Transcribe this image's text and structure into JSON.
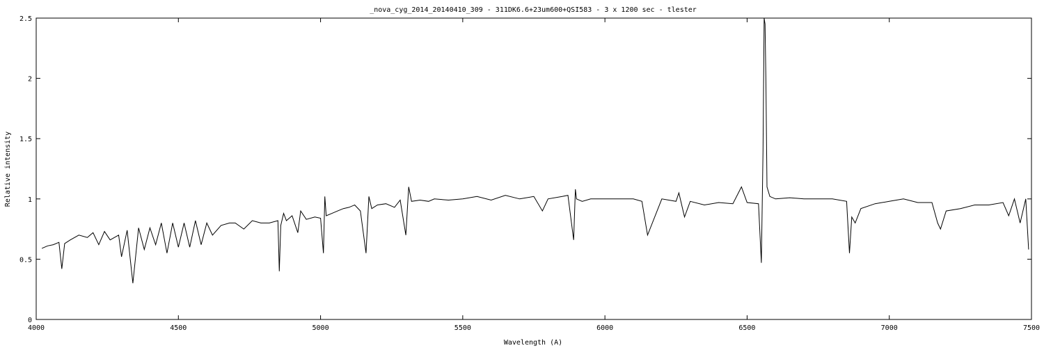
{
  "chart_data": {
    "type": "line",
    "title": "_nova_cyg_2014_20140410_309 - 311DK6.6+23um600+QSI583 - 3 x 1200 sec - tlester",
    "xlabel": "Wavelength (A)",
    "ylabel": "Relative intensity",
    "xlim": [
      4000,
      7500
    ],
    "ylim": [
      0,
      2.5
    ],
    "xticks": [
      "4000",
      "4500",
      "5000",
      "5500",
      "6000",
      "6500",
      "7000",
      "7500"
    ],
    "yticks": [
      "0",
      "0.5",
      "1",
      "1.5",
      "2",
      "2.5"
    ],
    "grid": false,
    "series": [
      {
        "x": [
          4020,
          4040,
          4060,
          4080,
          4090,
          4100,
          4120,
          4150,
          4180,
          4200,
          4220,
          4240,
          4260,
          4290,
          4300,
          4320,
          4340,
          4360,
          4380,
          4400,
          4420,
          4440,
          4460,
          4480,
          4500,
          4520,
          4540,
          4560,
          4580,
          4600,
          4620,
          4650,
          4680,
          4700,
          4730,
          4760,
          4790,
          4820,
          4850,
          4855,
          4860,
          4870,
          4880,
          4900,
          4920,
          4930,
          4950,
          4980,
          5000,
          5010,
          5015,
          5020,
          5040,
          5060,
          5080,
          5100,
          5120,
          5140,
          5160,
          5170,
          5180,
          5200,
          5230,
          5260,
          5280,
          5300,
          5310,
          5320,
          5350,
          5380,
          5400,
          5450,
          5500,
          5550,
          5600,
          5650,
          5700,
          5750,
          5780,
          5800,
          5850,
          5870,
          5890,
          5896,
          5900,
          5920,
          5950,
          6000,
          6050,
          6100,
          6130,
          6150,
          6200,
          6250,
          6260,
          6280,
          6300,
          6350,
          6400,
          6450,
          6480,
          6500,
          6540,
          6550,
          6556,
          6560,
          6563,
          6566,
          6570,
          6580,
          6600,
          6650,
          6700,
          6750,
          6800,
          6850,
          6860,
          6868,
          6880,
          6900,
          6950,
          7000,
          7050,
          7100,
          7150,
          7170,
          7180,
          7200,
          7250,
          7300,
          7350,
          7400,
          7420,
          7440,
          7460,
          7480,
          7490
        ],
        "y": [
          0.59,
          0.61,
          0.62,
          0.64,
          0.42,
          0.63,
          0.66,
          0.7,
          0.68,
          0.72,
          0.62,
          0.73,
          0.66,
          0.7,
          0.52,
          0.74,
          0.3,
          0.76,
          0.58,
          0.76,
          0.62,
          0.8,
          0.55,
          0.8,
          0.6,
          0.8,
          0.6,
          0.82,
          0.62,
          0.8,
          0.7,
          0.78,
          0.8,
          0.8,
          0.75,
          0.82,
          0.8,
          0.8,
          0.82,
          0.4,
          0.78,
          0.88,
          0.82,
          0.86,
          0.72,
          0.9,
          0.83,
          0.85,
          0.84,
          0.55,
          1.02,
          0.86,
          0.88,
          0.9,
          0.92,
          0.93,
          0.95,
          0.9,
          0.55,
          1.02,
          0.92,
          0.95,
          0.96,
          0.93,
          0.99,
          0.7,
          1.1,
          0.98,
          0.99,
          0.98,
          1.0,
          0.99,
          1.0,
          1.02,
          0.99,
          1.03,
          1.0,
          1.02,
          0.9,
          1.0,
          1.02,
          1.03,
          0.66,
          1.08,
          1.0,
          0.98,
          1.0,
          1.0,
          1.0,
          1.0,
          0.98,
          0.7,
          1.0,
          0.98,
          1.05,
          0.85,
          0.98,
          0.95,
          0.97,
          0.96,
          1.1,
          0.97,
          0.96,
          0.47,
          1.4,
          2.5,
          2.45,
          2.0,
          1.1,
          1.02,
          1.0,
          1.01,
          1.0,
          1.0,
          1.0,
          0.98,
          0.55,
          0.85,
          0.8,
          0.92,
          0.96,
          0.98,
          1.0,
          0.97,
          0.97,
          0.8,
          0.75,
          0.9,
          0.92,
          0.95,
          0.95,
          0.97,
          0.86,
          1.0,
          0.8,
          1.0,
          0.58
        ]
      }
    ]
  }
}
